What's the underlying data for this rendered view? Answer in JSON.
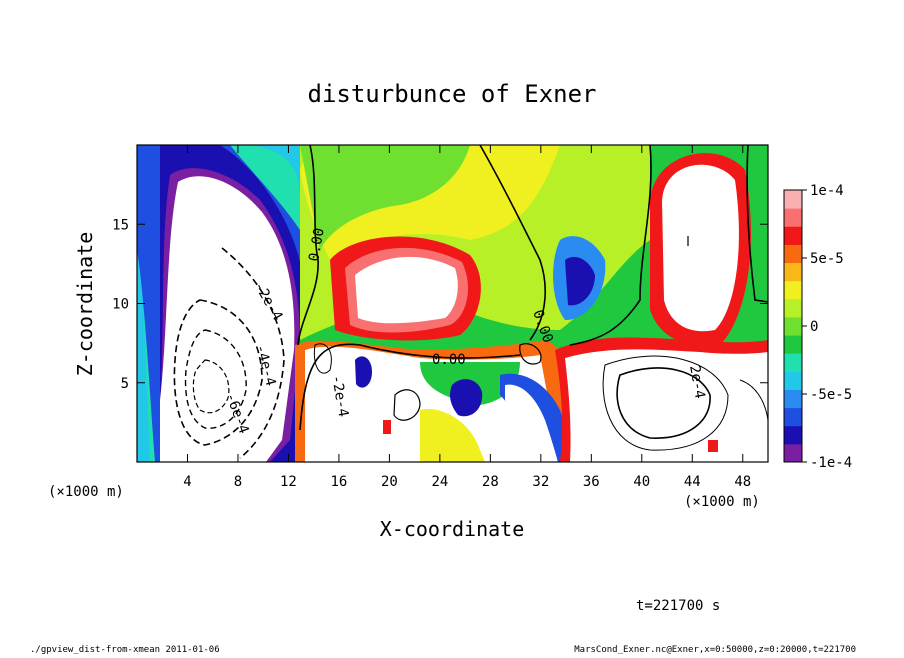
{
  "chart_data": {
    "type": "contour",
    "title": "disturbunce of Exner",
    "x_label": "X-coordinate",
    "y_label": "Z-coordinate",
    "x_unit": "(×1000 m)",
    "xlim": [
      0,
      50
    ],
    "xticks": [
      4,
      8,
      12,
      16,
      20,
      24,
      28,
      32,
      36,
      40,
      44,
      48
    ],
    "ylim": [
      0,
      20
    ],
    "yticks": [
      5,
      10,
      15
    ],
    "colorbar": {
      "lim": [
        -0.0001,
        0.0001
      ],
      "ticks": [
        {
          "value": 0.0001,
          "label": "1e-4"
        },
        {
          "value": 5e-05,
          "label": "5e-5"
        },
        0,
        {
          "value": -5e-05,
          "label": "-5e-5"
        },
        {
          "value": -0.0001,
          "label": "-1e-4"
        }
      ],
      "colors": [
        "#7a1fa2",
        "#1a0fb0",
        "#1f4fe0",
        "#2a8cf0",
        "#22c8e8",
        "#20e0b0",
        "#20c840",
        "#70e030",
        "#b8f028",
        "#f0f020",
        "#f8b818",
        "#f86a10",
        "#f01818",
        "#f87070",
        "#f8b0b0"
      ]
    },
    "contour_labels": [
      "0.00",
      "-2e-4",
      "-4e-4",
      "-6e-4",
      "2e-4"
    ],
    "time_label": "t=221700 s",
    "footer_left": "./gpview_dist-from-xmean  2011-01-06",
    "footer_right": "MarsCond_Exner.nc@Exner,x=0:50000,z=0:20000,t=221700"
  }
}
